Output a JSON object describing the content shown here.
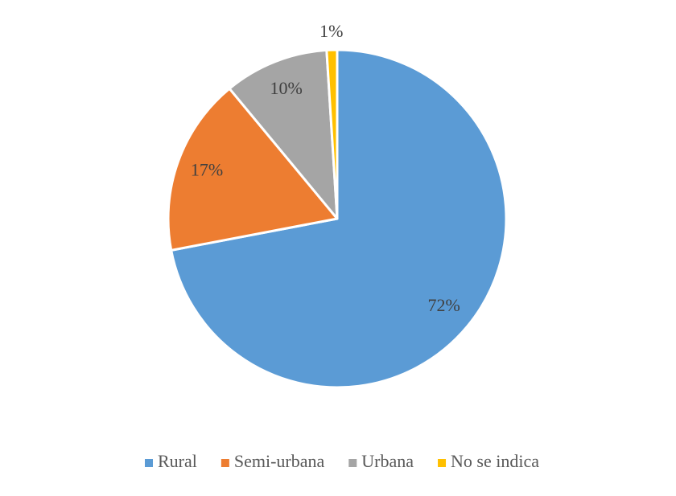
{
  "chart_data": {
    "type": "pie",
    "categories": [
      "Rural",
      "Semi-urbana",
      "Urbana",
      "No se indica"
    ],
    "values": [
      72,
      17,
      10,
      1
    ],
    "value_labels": [
      "72%",
      "17%",
      "10%",
      "1%"
    ],
    "colors": [
      "#5b9bd5",
      "#ed7d31",
      "#a5a5a5",
      "#ffc000"
    ],
    "legend": "bottom"
  }
}
